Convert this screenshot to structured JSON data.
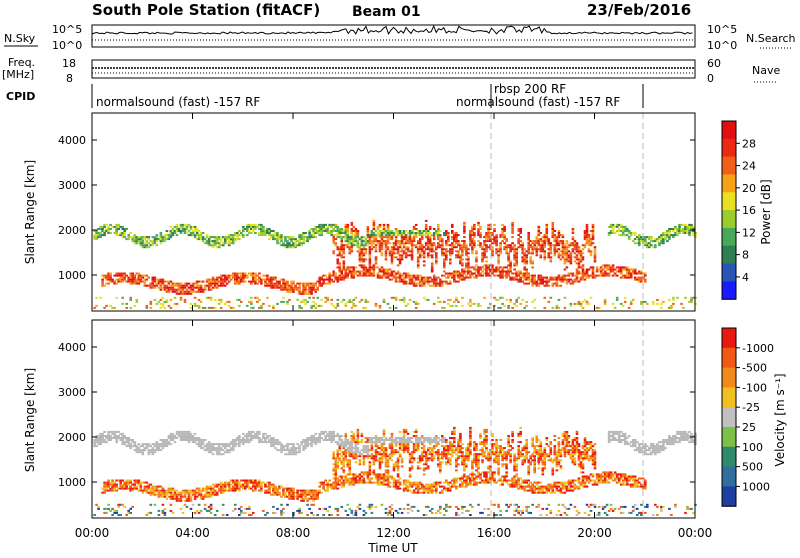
{
  "header": {
    "station": "South Pole Station (fitACF)",
    "beam": "Beam 01",
    "date": "23/Feb/2016"
  },
  "top_panels": {
    "nsky_label": "N.Sky",
    "nsky_ticks": [
      "10^5",
      "10^0"
    ],
    "nsearch_label": "N.Search",
    "nsearch_ticks": [
      "10^5",
      "10^0"
    ],
    "freq_label": "Freq.",
    "freq_unit": "[MHz]",
    "freq_ticks": [
      "18",
      "8"
    ],
    "nave_label": "Nave",
    "nave_ticks": [
      "60",
      "0"
    ],
    "cpid_label": "CPID",
    "cpid_segments": [
      {
        "text": "normalsound (fast) -157 RF",
        "start": 0.0
      },
      {
        "text": "rbsp 200 RF",
        "start": 16.0
      },
      {
        "text": "normalsound (fast) -157 RF",
        "start": 22.0
      }
    ]
  },
  "chart_data": [
    {
      "type": "heatmap",
      "title": "",
      "xlabel": "Time UT",
      "ylabel": "Slant Range [km]",
      "xlim": [
        0,
        24
      ],
      "ylim": [
        200,
        4600
      ],
      "x_tick_labels": [
        "00:00",
        "04:00",
        "08:00",
        "12:00",
        "16:00",
        "20:00",
        "00:00"
      ],
      "y_ticks": [
        1000,
        2000,
        3000,
        4000
      ],
      "colorbar": {
        "label": "Power [dB]",
        "ticks": [
          4,
          8,
          12,
          16,
          20,
          24,
          28
        ],
        "colors": [
          "#1a1aff",
          "#2a54b5",
          "#2f7f52",
          "#49a85a",
          "#9ccb2e",
          "#e8e020",
          "#f6a31a",
          "#f25f17",
          "#ec2a13",
          "#e10f0f"
        ]
      },
      "marker_lines_ut": [
        16.0,
        22.0
      ]
    },
    {
      "type": "heatmap",
      "title": "",
      "xlabel": "Time UT",
      "ylabel": "Slant Range [km]",
      "xlim": [
        0,
        24
      ],
      "ylim": [
        200,
        4600
      ],
      "x_tick_labels": [
        "00:00",
        "04:00",
        "08:00",
        "12:00",
        "16:00",
        "20:00",
        "00:00"
      ],
      "y_ticks": [
        1000,
        2000,
        3000,
        4000
      ],
      "colorbar": {
        "label": "Velocity [m s⁻¹]",
        "ticks": [
          "1000",
          "500",
          "100",
          "25",
          "-25",
          "-100",
          "-500",
          "-1000"
        ],
        "colors": [
          "#1f3fa0",
          "#2f6fa0",
          "#2f8a6a",
          "#7cc04a",
          "#c0c0c0",
          "#f0c020",
          "#f28a1a",
          "#f05a14",
          "#e81a10"
        ]
      },
      "marker_lines_ut": [
        16.0,
        22.0
      ]
    }
  ],
  "colors": {
    "ground_scatter": "#b8b8b8",
    "axis": "#000000"
  }
}
